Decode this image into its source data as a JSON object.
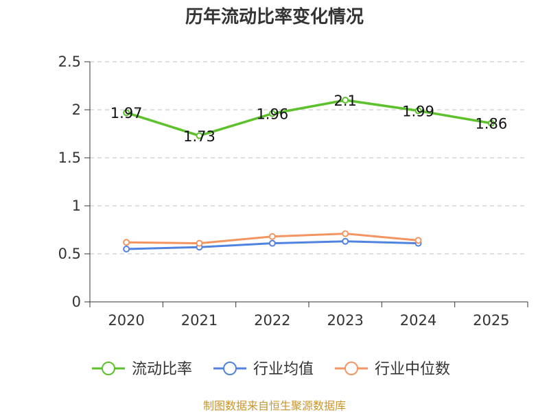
{
  "chart_data": {
    "type": "line",
    "title": "历年流动比率变化情况",
    "categories": [
      "2020",
      "2021",
      "2022",
      "2023",
      "2024",
      "2025"
    ],
    "ylim": [
      0,
      2.5
    ],
    "yticks": [
      "0",
      "0.5",
      "1",
      "1.5",
      "2",
      "2.5"
    ],
    "ytick_values": [
      0,
      0.5,
      1,
      1.5,
      2,
      2.5
    ],
    "grid": true,
    "legend_position": "bottom",
    "series": [
      {
        "name": "流动比率",
        "color": "#5cc12a",
        "values": [
          1.97,
          1.73,
          1.96,
          2.1,
          1.99,
          1.86
        ],
        "labels": [
          "1.97",
          "1.73",
          "1.96",
          "2.1",
          "1.99",
          "1.86"
        ]
      },
      {
        "name": "行业均值",
        "color": "#5083e0",
        "values": [
          0.55,
          0.57,
          0.61,
          0.63,
          0.61,
          null
        ]
      },
      {
        "name": "行业中位数",
        "color": "#f39461",
        "values": [
          0.62,
          0.61,
          0.68,
          0.71,
          0.64,
          null
        ]
      }
    ]
  },
  "source_note": "制图数据来自恒生聚源数据库"
}
